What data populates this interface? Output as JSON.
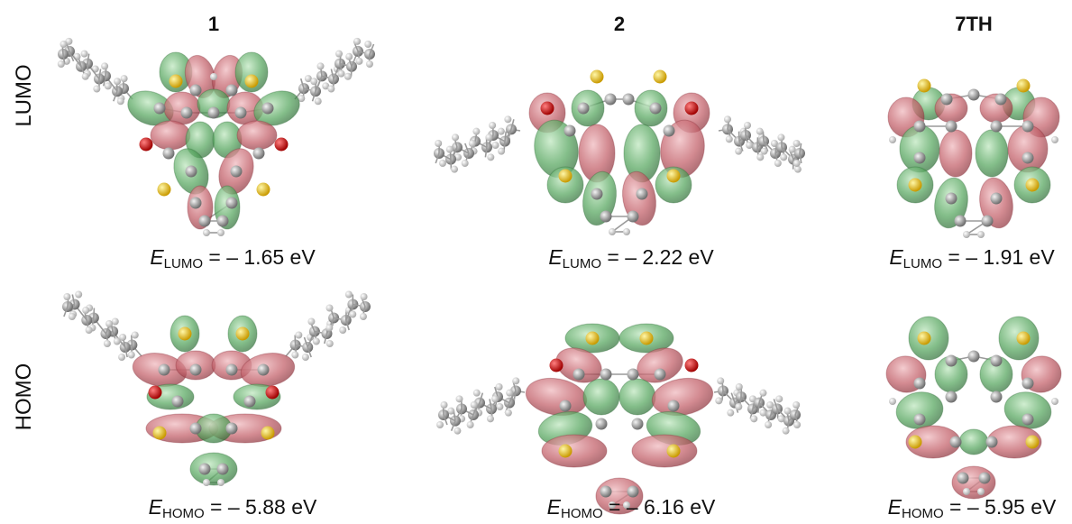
{
  "columns": [
    {
      "label": "1",
      "lumo": "= – 1.65 eV",
      "homo": "= – 5.88 eV"
    },
    {
      "label": "2",
      "lumo": "= – 2.22 eV",
      "homo": "= – 6.16 eV"
    },
    {
      "label": "7TH",
      "lumo": "= – 1.91 eV",
      "homo": "= – 5.95 eV"
    }
  ],
  "rows": {
    "lumo": "LUMO",
    "homo": "HOMO"
  },
  "symbol": "E",
  "colors": {
    "lobe_red": "#b8555e",
    "lobe_green": "#4f9a58",
    "carbon": "#8c8c8c",
    "hydrogen": "#e0e0e0",
    "sulfur": "#e3c21a",
    "oxygen": "#d41010",
    "bond": "#9a9a9a"
  }
}
